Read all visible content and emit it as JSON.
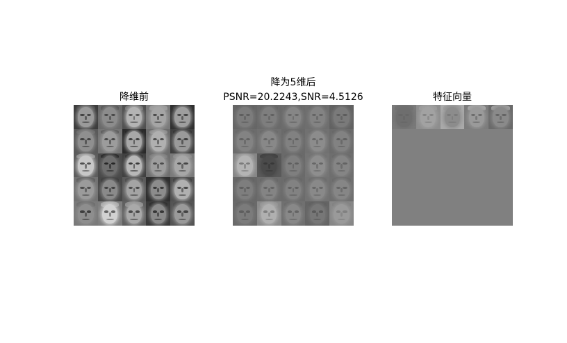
{
  "panels": [
    {
      "id": "original",
      "title_lines": [
        "降维前"
      ],
      "rows": 5,
      "cols": 5,
      "tiles": [
        {
          "skin": "#9a9a9a",
          "bg": "#3c3c3c",
          "dark": "#2a2a2a",
          "hair": "#4a4a4a"
        },
        {
          "skin": "#8c8c8c",
          "bg": "#6a6a6a",
          "dark": "#333333",
          "hair": "#555555"
        },
        {
          "skin": "#b3b3b3",
          "bg": "#505050",
          "dark": "#3a3a3a",
          "hair": "#707070"
        },
        {
          "skin": "#a5a5a5",
          "bg": "#7a7a7a",
          "dark": "#2e2e2e",
          "hair": "#9a9a9a"
        },
        {
          "skin": "#9e9e9e",
          "bg": "#2f2f2f",
          "dark": "#2a2a2a",
          "hair": "#3a3a3a"
        },
        {
          "skin": "#8f8f8f",
          "bg": "#5a5a5a",
          "dark": "#2c2c2c",
          "hair": "#6a6a6a"
        },
        {
          "skin": "#9c9c9c",
          "bg": "#747474",
          "dark": "#303030",
          "hair": "#5a5a5a"
        },
        {
          "skin": "#a8a8a8",
          "bg": "#2a2a2a",
          "dark": "#202020",
          "hair": "#1e1e1e"
        },
        {
          "skin": "#b0b0b0",
          "bg": "#6c6c6c",
          "dark": "#333333",
          "hair": "#8a8a8a"
        },
        {
          "skin": "#9a9a9a",
          "bg": "#3e3e3e",
          "dark": "#252525",
          "hair": "#2e2e2e"
        },
        {
          "skin": "#c8c8c8",
          "bg": "#5c5c5c",
          "dark": "#333333",
          "hair": "#8c8c8c"
        },
        {
          "skin": "#6e6e6e",
          "bg": "#4a4a4a",
          "dark": "#151515",
          "hair": "#262626"
        },
        {
          "skin": "#b8b8b8",
          "bg": "#404040",
          "dark": "#1a1a1a",
          "hair": "#2c2c2c"
        },
        {
          "skin": "#9d9d9d",
          "bg": "#6e6e6e",
          "dark": "#3a3a3a",
          "hair": "#7c7c7c"
        },
        {
          "skin": "#a7a7a7",
          "bg": "#7a7a7a",
          "dark": "#2e2e2e",
          "hair": "#8a8a8a"
        },
        {
          "skin": "#9b9b9b",
          "bg": "#727272",
          "dark": "#383838",
          "hair": "#5e5e5e"
        },
        {
          "skin": "#8a8a8a",
          "bg": "#484848",
          "dark": "#2a2a2a",
          "hair": "#3c3c3c"
        },
        {
          "skin": "#a4a4a4",
          "bg": "#5a5a5a",
          "dark": "#2f2f2f",
          "hair": "#4a4a4a"
        },
        {
          "skin": "#8c8c8c",
          "bg": "#2e2e2e",
          "dark": "#202020",
          "hair": "#2a2a2a"
        },
        {
          "skin": "#b0b0b0",
          "bg": "#505050",
          "dark": "#2c2c2c",
          "hair": "#3e3e3e"
        },
        {
          "skin": "#8e8e8e",
          "bg": "#7a7a7a",
          "dark": "#2b2b2b",
          "hair": "#6e6e6e"
        },
        {
          "skin": "#d2d2d2",
          "bg": "#7e7e7e",
          "dark": "#4a4a4a",
          "hair": "#a8a8a8"
        },
        {
          "skin": "#a9a9a9",
          "bg": "#606060",
          "dark": "#323232",
          "hair": "#8e8e8e"
        },
        {
          "skin": "#8a8a8a",
          "bg": "#3a3a3a",
          "dark": "#222222",
          "hair": "#2a2a2a"
        },
        {
          "skin": "#9a9a9a",
          "bg": "#545454",
          "dark": "#2e2e2e",
          "hair": "#4c4c4c"
        }
      ]
    },
    {
      "id": "reduced",
      "title_lines": [
        "降为5维后",
        "PSNR=20.2243,SNR=4.5126"
      ],
      "rows": 5,
      "cols": 5,
      "tiles": [
        {
          "skin": "#7c7c7c",
          "bg": "#666666",
          "dark": "#555555",
          "hair": "#616161"
        },
        {
          "skin": "#7e7e7e",
          "bg": "#6a6a6a",
          "dark": "#585858",
          "hair": "#646464"
        },
        {
          "skin": "#868686",
          "bg": "#6c6c6c",
          "dark": "#5c5c5c",
          "hair": "#686868"
        },
        {
          "skin": "#838383",
          "bg": "#6e6e6e",
          "dark": "#5a5a5a",
          "hair": "#696969"
        },
        {
          "skin": "#7a7a7a",
          "bg": "#626262",
          "dark": "#545454",
          "hair": "#5e5e5e"
        },
        {
          "skin": "#838383",
          "bg": "#6c6c6c",
          "dark": "#5a5a5a",
          "hair": "#676767"
        },
        {
          "skin": "#888888",
          "bg": "#707070",
          "dark": "#5e5e5e",
          "hair": "#6a6a6a"
        },
        {
          "skin": "#818181",
          "bg": "#6a6a6a",
          "dark": "#575757",
          "hair": "#656565"
        },
        {
          "skin": "#8c8c8c",
          "bg": "#717171",
          "dark": "#5e5e5e",
          "hair": "#6c6c6c"
        },
        {
          "skin": "#828282",
          "bg": "#6b6b6b",
          "dark": "#585858",
          "hair": "#666666"
        },
        {
          "skin": "#b4b4b4",
          "bg": "#868686",
          "dark": "#6e6e6e",
          "hair": "#8e8e8e"
        },
        {
          "skin": "#4a4a4a",
          "bg": "#5a5a5a",
          "dark": "#333333",
          "hair": "#424242"
        },
        {
          "skin": "#7f7f7f",
          "bg": "#6a6a6a",
          "dark": "#575757",
          "hair": "#656565"
        },
        {
          "skin": "#8e8e8e",
          "bg": "#747474",
          "dark": "#5e5e5e",
          "hair": "#707070"
        },
        {
          "skin": "#858585",
          "bg": "#6e6e6e",
          "dark": "#5a5a5a",
          "hair": "#686868"
        },
        {
          "skin": "#7e7e7e",
          "bg": "#686868",
          "dark": "#575757",
          "hair": "#636363"
        },
        {
          "skin": "#848484",
          "bg": "#6c6c6c",
          "dark": "#5a5a5a",
          "hair": "#676767"
        },
        {
          "skin": "#828282",
          "bg": "#6b6b6b",
          "dark": "#595959",
          "hair": "#666666"
        },
        {
          "skin": "#898989",
          "bg": "#727272",
          "dark": "#5e5e5e",
          "hair": "#6c6c6c"
        },
        {
          "skin": "#868686",
          "bg": "#6f6f6f",
          "dark": "#5b5b5b",
          "hair": "#6a6a6a"
        },
        {
          "skin": "#7b7b7b",
          "bg": "#6a6a6a",
          "dark": "#575757",
          "hair": "#646464"
        },
        {
          "skin": "#b0b0b0",
          "bg": "#8a8a8a",
          "dark": "#747474",
          "hair": "#939393"
        },
        {
          "skin": "#888888",
          "bg": "#707070",
          "dark": "#5d5d5d",
          "hair": "#6b6b6b"
        },
        {
          "skin": "#777777",
          "bg": "#656565",
          "dark": "#535353",
          "hair": "#606060"
        },
        {
          "skin": "#9a9a9a",
          "bg": "#878787",
          "dark": "#7a7a7a",
          "hair": "#828282"
        }
      ]
    },
    {
      "id": "eigenvectors",
      "title_lines": [
        "特征向量"
      ],
      "rows": 5,
      "cols": 5,
      "tiles": [
        {
          "skin": "#6e6e6e",
          "bg": "#7a7a7a",
          "dark": "#656565",
          "hair": "#727272"
        },
        {
          "skin": "#a2a2a2",
          "bg": "#8e8e8e",
          "dark": "#7a7a7a",
          "hair": "#9a9a9a"
        },
        {
          "skin": "#8c8c8c",
          "bg": "#aaaaaa",
          "dark": "#747474",
          "hair": "#9e9e9e"
        },
        {
          "skin": "#9a9a9a",
          "bg": "#7c7c7c",
          "dark": "#5e5e5e",
          "hair": "#a6a6a6"
        },
        {
          "skin": "#8a8a8a",
          "bg": "#6a6a6a",
          "dark": "#585858",
          "hair": "#a0a0a0"
        },
        null,
        null,
        null,
        null,
        null,
        null,
        null,
        null,
        null,
        null,
        null,
        null,
        null,
        null,
        null,
        null,
        null,
        null,
        null,
        null
      ]
    }
  ],
  "colors": {
    "figure_bg": "#ffffff",
    "empty_tile": "#808080"
  }
}
